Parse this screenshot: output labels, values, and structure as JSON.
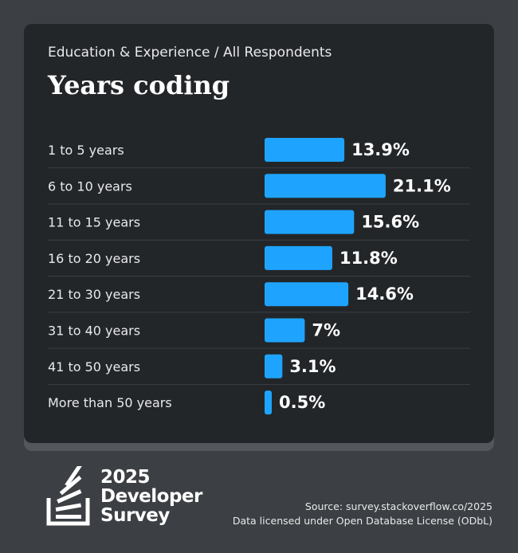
{
  "header": {
    "subtitle": "Education & Experience / All Respondents",
    "title": "Years coding"
  },
  "chart_data": {
    "type": "bar",
    "orientation": "horizontal",
    "title": "Years coding",
    "categories": [
      "1 to 5 years",
      "6 to 10 years",
      "11 to 15 years",
      "16 to 20 years",
      "21 to 30 years",
      "31 to 40 years",
      "41 to 50 years",
      "More than 50 years"
    ],
    "values": [
      13.9,
      21.1,
      15.6,
      11.8,
      14.6,
      7,
      3.1,
      0.5
    ],
    "value_labels": [
      "13.9%",
      "21.1%",
      "15.6%",
      "11.8%",
      "14.6%",
      "7%",
      "3.1%",
      "0.5%"
    ],
    "unit": "%",
    "bar_color": "#1ea4ff",
    "grid": false
  },
  "brand": {
    "line1": "2025",
    "line2": "Developer",
    "line3": "Survey",
    "logo_icon": "stackoverflow-logo-icon"
  },
  "footer": {
    "source": "Source: survey.stackoverflow.co/2025",
    "license": "Data licensed under Open Database License (ODbL)"
  },
  "colors": {
    "background": "#3c3f43",
    "card": "#232629",
    "accent": "#1ea4ff"
  }
}
